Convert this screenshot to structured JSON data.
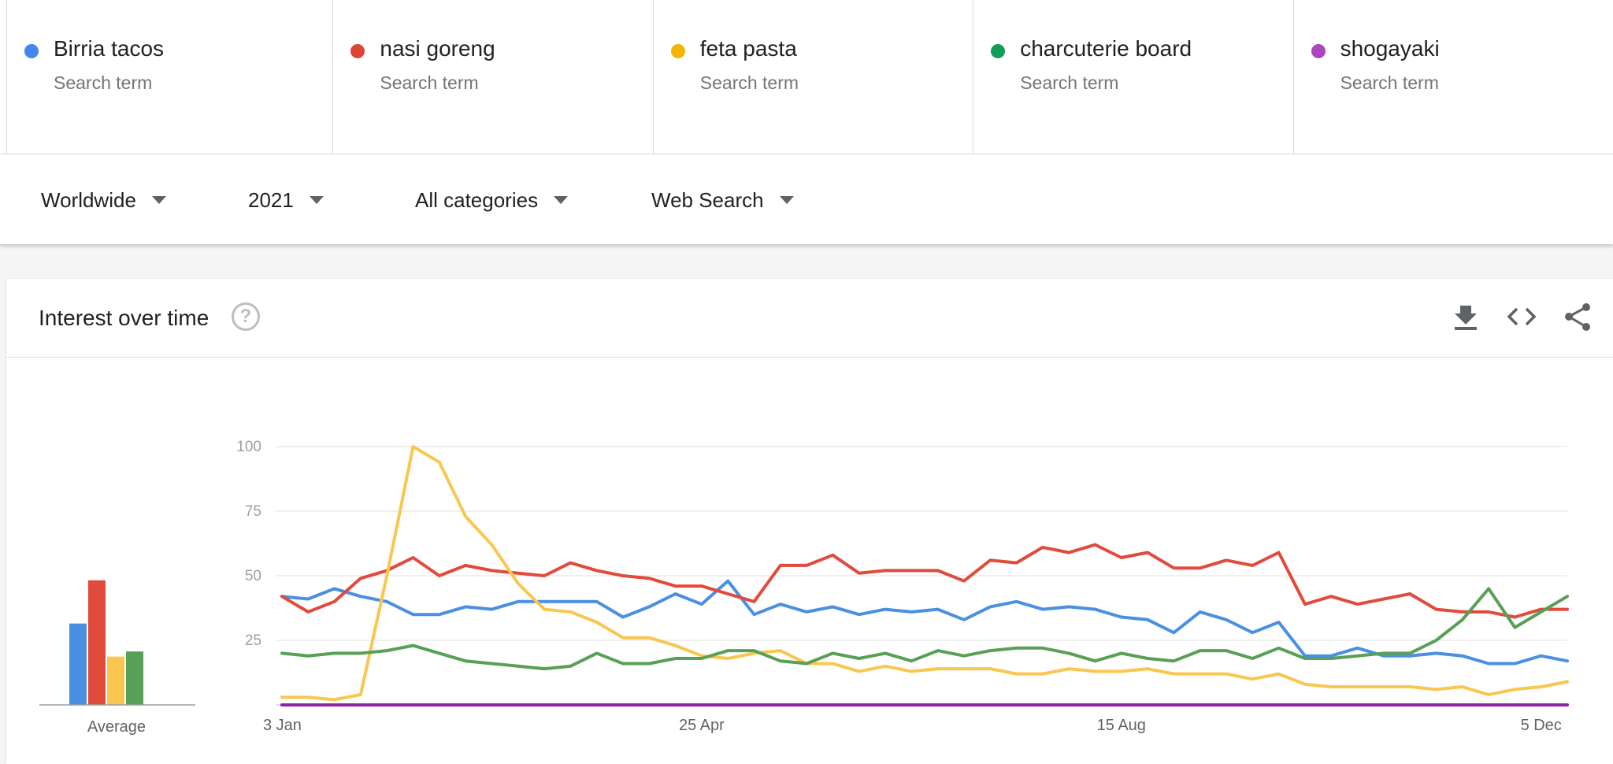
{
  "terms": [
    {
      "name": "Birria tacos",
      "sub": "Search term",
      "color": "#4285f4"
    },
    {
      "name": "nasi goreng",
      "sub": "Search term",
      "color": "#db4437"
    },
    {
      "name": "feta pasta",
      "sub": "Search term",
      "color": "#f4b400"
    },
    {
      "name": "charcuterie board",
      "sub": "Search term",
      "color": "#0f9d58"
    },
    {
      "name": "shogayaki",
      "sub": "Search term",
      "color": "#ab47bc"
    }
  ],
  "filters": {
    "region": "Worldwide",
    "period": "2021",
    "category": "All categories",
    "search_type": "Web Search"
  },
  "card": {
    "title": "Interest over time",
    "help_icon": "help-circle-icon",
    "icons": [
      "download-icon",
      "embed-code-icon",
      "share-icon"
    ]
  },
  "chart_data": {
    "type": "line",
    "y_ticks": [
      25,
      50,
      75,
      100
    ],
    "ylim": [
      0,
      100
    ],
    "x_ticks": [
      {
        "label": "3 Jan",
        "index": 0
      },
      {
        "label": "25 Apr",
        "index": 16
      },
      {
        "label": "15 Aug",
        "index": 32
      },
      {
        "label": "5 Dec",
        "index": 48
      }
    ],
    "average_label": "Average",
    "averages": [
      32,
      49,
      19,
      21,
      0
    ],
    "series": [
      {
        "name": "Birria tacos",
        "color": "#4a90e2",
        "values": [
          42,
          41,
          45,
          42,
          40,
          35,
          35,
          38,
          37,
          40,
          40,
          40,
          40,
          34,
          38,
          43,
          39,
          48,
          35,
          39,
          36,
          38,
          35,
          37,
          36,
          37,
          33,
          38,
          40,
          37,
          38,
          37,
          34,
          33,
          28,
          36,
          33,
          28,
          32,
          19,
          19,
          22,
          19,
          19,
          20,
          19,
          16,
          16,
          19,
          17
        ]
      },
      {
        "name": "nasi goreng",
        "color": "#e04b3b",
        "values": [
          42,
          36,
          40,
          49,
          52,
          57,
          50,
          54,
          52,
          51,
          50,
          55,
          52,
          50,
          49,
          46,
          46,
          43,
          40,
          54,
          54,
          58,
          51,
          52,
          52,
          52,
          48,
          56,
          55,
          61,
          59,
          62,
          57,
          59,
          53,
          53,
          56,
          54,
          59,
          39,
          42,
          39,
          41,
          43,
          37,
          36,
          36,
          34,
          37,
          37
        ]
      },
      {
        "name": "feta pasta",
        "color": "#f9c74f",
        "values": [
          3,
          3,
          2,
          4,
          50,
          100,
          94,
          73,
          62,
          47,
          37,
          36,
          32,
          26,
          26,
          23,
          19,
          18,
          20,
          21,
          16,
          16,
          13,
          15,
          13,
          14,
          14,
          14,
          12,
          12,
          14,
          13,
          13,
          14,
          12,
          12,
          12,
          10,
          12,
          8,
          7,
          7,
          7,
          7,
          6,
          7,
          4,
          6,
          7,
          9
        ]
      },
      {
        "name": "charcuterie board",
        "color": "#58a055",
        "values": [
          20,
          19,
          20,
          20,
          21,
          23,
          20,
          17,
          16,
          15,
          14,
          15,
          20,
          16,
          16,
          18,
          18,
          21,
          21,
          17,
          16,
          20,
          18,
          20,
          17,
          21,
          19,
          21,
          22,
          22,
          20,
          17,
          20,
          18,
          17,
          21,
          21,
          18,
          22,
          18,
          18,
          19,
          20,
          20,
          25,
          33,
          45,
          30,
          36,
          42
        ]
      },
      {
        "name": "shogayaki",
        "color": "#8e24aa",
        "values": [
          0,
          0,
          0,
          0,
          0,
          0,
          0,
          0,
          0,
          0,
          0,
          0,
          0,
          0,
          0,
          0,
          0,
          0,
          0,
          0,
          0,
          0,
          0,
          0,
          0,
          0,
          0,
          0,
          0,
          0,
          0,
          0,
          0,
          0,
          0,
          0,
          0,
          0,
          0,
          0,
          0,
          0,
          0,
          0,
          0,
          0,
          0,
          0,
          0,
          0
        ]
      }
    ]
  }
}
